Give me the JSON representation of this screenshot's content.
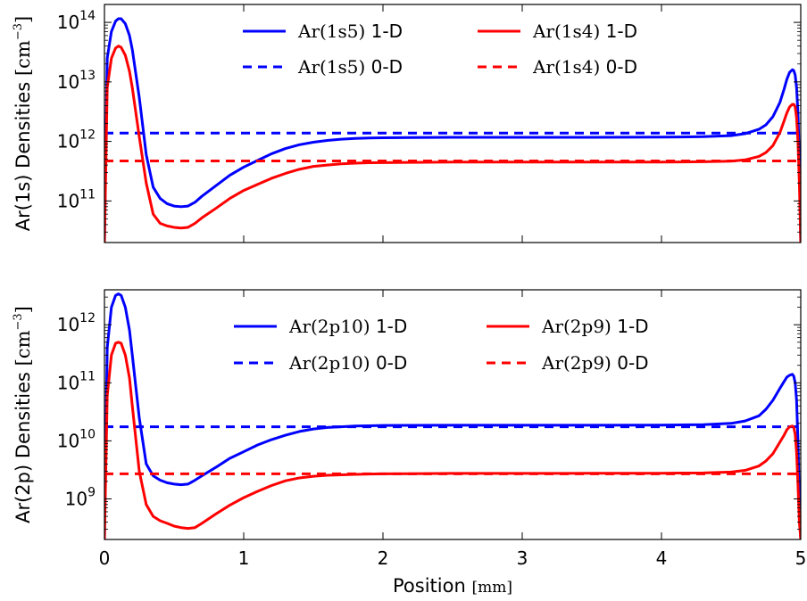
{
  "figure": {
    "xlabel_text": "Position ",
    "xlabel_unit": "[mm]"
  },
  "chart_data": [
    {
      "type": "line",
      "ylabel_text": "Ar(1s) Densities ",
      "ylabel_unit_open": "[cm",
      "ylabel_unit_exp": "−3",
      "ylabel_unit_close": "]",
      "xlim": [
        0,
        5
      ],
      "ylim": [
        20000000000,
        200000000000000
      ],
      "yscale": "log",
      "x_ticks": [
        0,
        1,
        2,
        3,
        4,
        5
      ],
      "y_ticks": [
        {
          "value": 100000000000,
          "base": "10",
          "exp": "11"
        },
        {
          "value": 1000000000000,
          "base": "10",
          "exp": "12"
        },
        {
          "value": 10000000000000,
          "base": "10",
          "exp": "13"
        },
        {
          "value": 100000000000000,
          "base": "10",
          "exp": "14"
        }
      ],
      "grid": false,
      "legend_placement": "top-center",
      "series": [
        {
          "name_math": "Ar(1s5)",
          "name_suffix": " 1-D",
          "color": "#0000ff",
          "style": "solid",
          "x": [
            0,
            0.02,
            0.05,
            0.08,
            0.1,
            0.12,
            0.15,
            0.18,
            0.2,
            0.25,
            0.3,
            0.35,
            0.4,
            0.45,
            0.5,
            0.55,
            0.6,
            0.65,
            0.7,
            0.8,
            0.9,
            1.0,
            1.1,
            1.2,
            1.3,
            1.4,
            1.5,
            1.6,
            1.7,
            1.8,
            1.9,
            2.0,
            2.2,
            2.5,
            3.0,
            3.5,
            4.0,
            4.3,
            4.5,
            4.6,
            4.7,
            4.75,
            4.8,
            4.85,
            4.88,
            4.9,
            4.92,
            4.94,
            4.95,
            4.96,
            4.97,
            4.98,
            4.99,
            5.0
          ],
          "y": [
            20000000000,
            25000000000000,
            70000000000000,
            105000000000000,
            115000000000000,
            115000000000000,
            95000000000000,
            60000000000000,
            35000000000000,
            5500000000000,
            600000000000,
            170000000000,
            110000000000,
            90000000000,
            82000000000,
            80000000000,
            82000000000,
            95000000000,
            120000000000,
            180000000000,
            270000000000,
            370000000000,
            480000000000,
            620000000000,
            760000000000,
            880000000000,
            970000000000,
            1040000000000,
            1090000000000,
            1120000000000,
            1140000000000,
            1150000000000,
            1160000000000,
            1170000000000,
            1170000000000,
            1170000000000,
            1180000000000,
            1200000000000,
            1250000000000,
            1350000000000,
            1600000000000,
            1900000000000,
            2600000000000,
            4500000000000,
            7500000000000,
            11000000000000,
            14500000000000,
            16000000000000,
            15500000000000,
            13000000000000,
            8000000000000,
            3000000000000,
            500000000000,
            20000000000
          ]
        },
        {
          "name_math": "Ar(1s5)",
          "name_suffix": " 0-D",
          "color": "#0000ff",
          "style": "dashed",
          "x": [
            0,
            5
          ],
          "y": [
            1380000000000,
            1380000000000
          ]
        },
        {
          "name_math": "Ar(1s4)",
          "name_suffix": " 1-D",
          "color": "#ff0000",
          "style": "solid",
          "x": [
            0,
            0.02,
            0.05,
            0.08,
            0.1,
            0.12,
            0.15,
            0.18,
            0.2,
            0.25,
            0.3,
            0.35,
            0.4,
            0.45,
            0.5,
            0.55,
            0.6,
            0.65,
            0.7,
            0.8,
            0.9,
            1.0,
            1.1,
            1.2,
            1.3,
            1.4,
            1.5,
            1.6,
            1.7,
            1.8,
            1.9,
            2.0,
            2.2,
            2.5,
            3.0,
            3.5,
            4.0,
            4.3,
            4.5,
            4.6,
            4.7,
            4.75,
            4.8,
            4.85,
            4.88,
            4.9,
            4.92,
            4.94,
            4.95,
            4.96,
            4.97,
            4.98,
            4.99,
            5.0
          ],
          "y": [
            20000000000,
            8000000000000,
            25000000000000,
            37000000000000,
            40000000000000,
            38000000000000,
            28000000000000,
            15000000000000,
            8000000000000,
            1200000000000,
            200000000000,
            60000000000,
            42000000000,
            38000000000,
            36000000000,
            35000000000,
            36000000000,
            42000000000,
            52000000000,
            75000000000,
            110000000000,
            150000000000,
            190000000000,
            240000000000,
            290000000000,
            340000000000,
            380000000000,
            400000000000,
            420000000000,
            430000000000,
            438000000000,
            440000000000,
            445000000000,
            450000000000,
            450000000000,
            450000000000,
            450000000000,
            455000000000,
            465000000000,
            490000000000,
            560000000000,
            650000000000,
            850000000000,
            1400000000000,
            2200000000000,
            3000000000000,
            3800000000000,
            4200000000000,
            4200000000000,
            3800000000000,
            2500000000000,
            1000000000000,
            200000000000,
            20000000000
          ]
        },
        {
          "name_math": "Ar(1s4)",
          "name_suffix": " 0-D",
          "color": "#ff0000",
          "style": "dashed",
          "x": [
            0,
            5
          ],
          "y": [
            470000000000,
            470000000000
          ]
        }
      ]
    },
    {
      "type": "line",
      "ylabel_text": "Ar(2p) Densities ",
      "ylabel_unit_open": "[cm",
      "ylabel_unit_exp": "−3",
      "ylabel_unit_close": "]",
      "xlim": [
        0,
        5
      ],
      "ylim": [
        200000000,
        4000000000000
      ],
      "yscale": "log",
      "x_ticks": [
        0,
        1,
        2,
        3,
        4,
        5
      ],
      "y_ticks": [
        {
          "value": 1000000000,
          "base": "10",
          "exp": "9"
        },
        {
          "value": 10000000000,
          "base": "10",
          "exp": "10"
        },
        {
          "value": 100000000000,
          "base": "10",
          "exp": "11"
        },
        {
          "value": 1000000000000,
          "base": "10",
          "exp": "12"
        }
      ],
      "grid": false,
      "legend_placement": "top-center",
      "series": [
        {
          "name_math": "Ar(2p10)",
          "name_suffix": " 1-D",
          "color": "#0000ff",
          "style": "solid",
          "x": [
            0,
            0.02,
            0.05,
            0.08,
            0.1,
            0.12,
            0.15,
            0.18,
            0.2,
            0.25,
            0.3,
            0.35,
            0.4,
            0.45,
            0.5,
            0.55,
            0.6,
            0.65,
            0.7,
            0.8,
            0.9,
            1.0,
            1.1,
            1.2,
            1.3,
            1.4,
            1.5,
            1.6,
            1.7,
            1.8,
            1.9,
            2.0,
            2.2,
            2.5,
            3.0,
            3.5,
            4.0,
            4.3,
            4.5,
            4.6,
            4.7,
            4.75,
            4.8,
            4.85,
            4.88,
            4.9,
            4.92,
            4.94,
            4.95,
            4.96,
            4.97,
            4.98,
            4.99,
            5.0
          ],
          "y": [
            200000000,
            400000000000,
            2000000000000,
            3200000000000,
            3400000000000,
            3200000000000,
            2000000000000,
            800000000000,
            300000000000,
            25000000000,
            4000000000,
            2500000000,
            2100000000,
            1900000000,
            1800000000,
            1750000000,
            1800000000,
            2100000000,
            2500000000,
            3500000000,
            5000000000,
            6500000000,
            8500000000,
            10500000000,
            12500000000,
            14500000000,
            16000000000,
            17000000000,
            17500000000,
            18000000000,
            18200000000,
            18400000000,
            18500000000,
            18600000000,
            18600000000,
            18600000000,
            18700000000,
            19000000000,
            20000000000,
            22000000000,
            27000000000,
            35000000000,
            50000000000,
            80000000000,
            105000000000,
            125000000000,
            135000000000,
            140000000000,
            130000000000,
            100000000000,
            50000000000,
            10000000000,
            1000000000,
            200000000
          ]
        },
        {
          "name_math": "Ar(2p10)",
          "name_suffix": " 0-D",
          "color": "#0000ff",
          "style": "dashed",
          "x": [
            0,
            5
          ],
          "y": [
            17500000000,
            17500000000
          ]
        },
        {
          "name_math": "Ar(2p9)",
          "name_suffix": " 1-D",
          "color": "#ff0000",
          "style": "solid",
          "x": [
            0,
            0.02,
            0.05,
            0.08,
            0.1,
            0.12,
            0.15,
            0.18,
            0.2,
            0.25,
            0.3,
            0.35,
            0.4,
            0.45,
            0.5,
            0.55,
            0.6,
            0.65,
            0.7,
            0.8,
            0.9,
            1.0,
            1.1,
            1.2,
            1.3,
            1.4,
            1.5,
            1.6,
            1.7,
            1.8,
            1.9,
            2.0,
            2.2,
            2.5,
            3.0,
            3.5,
            4.0,
            4.3,
            4.5,
            4.6,
            4.7,
            4.75,
            4.8,
            4.85,
            4.88,
            4.9,
            4.92,
            4.94,
            4.95,
            4.96,
            4.97,
            4.98,
            4.99,
            5.0
          ],
          "y": [
            200000000,
            60000000000,
            300000000000,
            480000000000,
            500000000000,
            480000000000,
            300000000000,
            120000000000,
            40000000000,
            3000000000,
            800000000,
            500000000,
            420000000,
            380000000,
            340000000,
            320000000,
            310000000,
            320000000,
            380000000,
            550000000,
            780000000,
            1050000000,
            1350000000,
            1700000000,
            2050000000,
            2300000000,
            2450000000,
            2550000000,
            2600000000,
            2650000000,
            2680000000,
            2700000000,
            2720000000,
            2750000000,
            2750000000,
            2760000000,
            2770000000,
            2800000000,
            2900000000,
            3100000000,
            3700000000,
            4500000000,
            6000000000,
            9500000000,
            12500000000,
            15500000000,
            17500000000,
            18000000000,
            17000000000,
            13000000000,
            6500000000,
            1800000000,
            400000000,
            200000000
          ]
        },
        {
          "name_math": "Ar(2p9)",
          "name_suffix": " 0-D",
          "color": "#ff0000",
          "style": "dashed",
          "x": [
            0,
            5
          ],
          "y": [
            2700000000,
            2700000000
          ]
        }
      ]
    }
  ]
}
